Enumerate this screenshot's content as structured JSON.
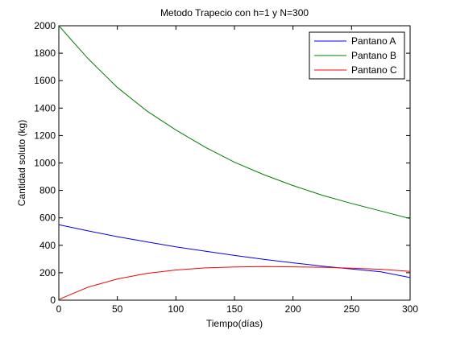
{
  "chart_data": {
    "type": "line",
    "title": "Metodo Trapecio con h=1 y N=300",
    "xlabel": "Tiempo(días)",
    "ylabel": "Cantidad soluto (kg)",
    "xlim": [
      0,
      300
    ],
    "ylim": [
      0,
      2000
    ],
    "xticks": [
      0,
      50,
      100,
      150,
      200,
      250,
      300
    ],
    "yticks": [
      0,
      200,
      400,
      600,
      800,
      1000,
      1200,
      1400,
      1600,
      1800,
      2000
    ],
    "grid": false,
    "legend_position": "top-right",
    "x": [
      0,
      25,
      50,
      75,
      100,
      125,
      150,
      175,
      200,
      225,
      250,
      275,
      300
    ],
    "series": [
      {
        "name": "Pantano A",
        "color": "#0000ff",
        "values": [
          550,
          505,
          463,
          425,
          389,
          357,
          326,
          298,
          272,
          248,
          227,
          207,
          165
        ]
      },
      {
        "name": "Pantano B",
        "color": "#008000",
        "values": [
          2000,
          1760,
          1550,
          1380,
          1240,
          1115,
          1005,
          915,
          835,
          765,
          705,
          650,
          595
        ]
      },
      {
        "name": "Pantano C",
        "color": "#ff0000",
        "values": [
          5,
          95,
          155,
          195,
          220,
          235,
          242,
          245,
          243,
          240,
          233,
          225,
          210
        ]
      }
    ]
  }
}
